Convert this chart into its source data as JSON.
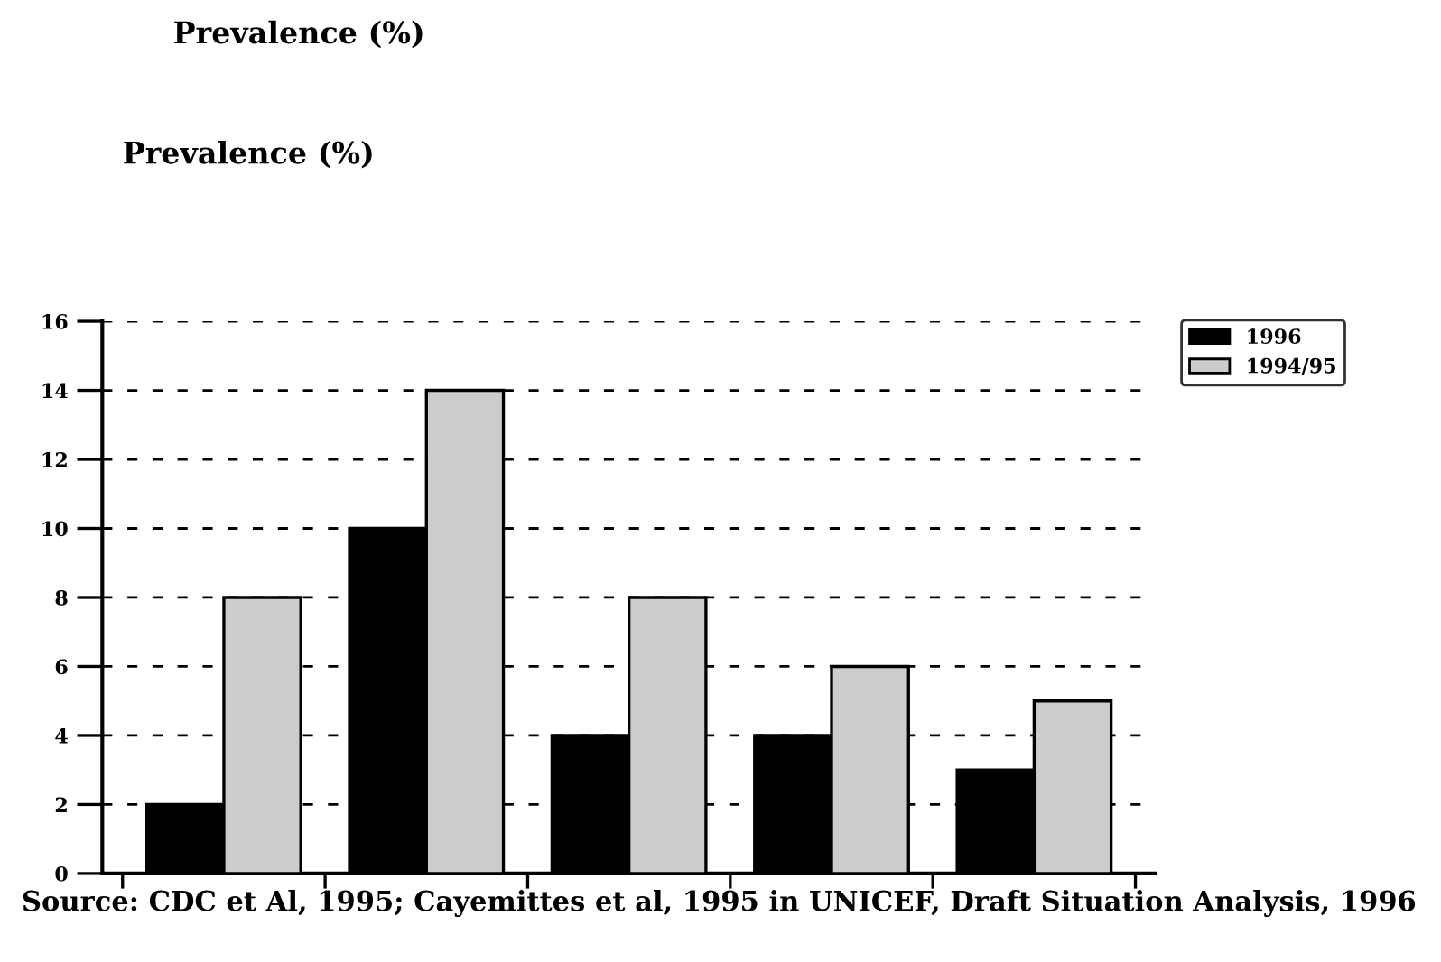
{
  "chart_data": {
    "type": "bar",
    "title": "Prevalence (%)",
    "subtitle": "Prevalence (%)",
    "categories": [
      null,
      null,
      null,
      null,
      null
    ],
    "series": [
      {
        "name": "1996",
        "color": "#000000",
        "values": [
          2,
          10,
          4,
          4,
          3
        ]
      },
      {
        "name": "1994/95",
        "color": "#cccccc",
        "values": [
          8,
          14,
          8,
          6,
          5
        ]
      }
    ],
    "ylim": [
      0,
      16
    ],
    "yticks": [
      0,
      2,
      4,
      6,
      8,
      10,
      12,
      14,
      16
    ],
    "grid": "y",
    "legend": "top right",
    "annotations": [
      "Source: CDC et Al, 1995; Cayemittes et al, 1995 in UNICEF, Draft Situation Analysis, 1996"
    ]
  }
}
